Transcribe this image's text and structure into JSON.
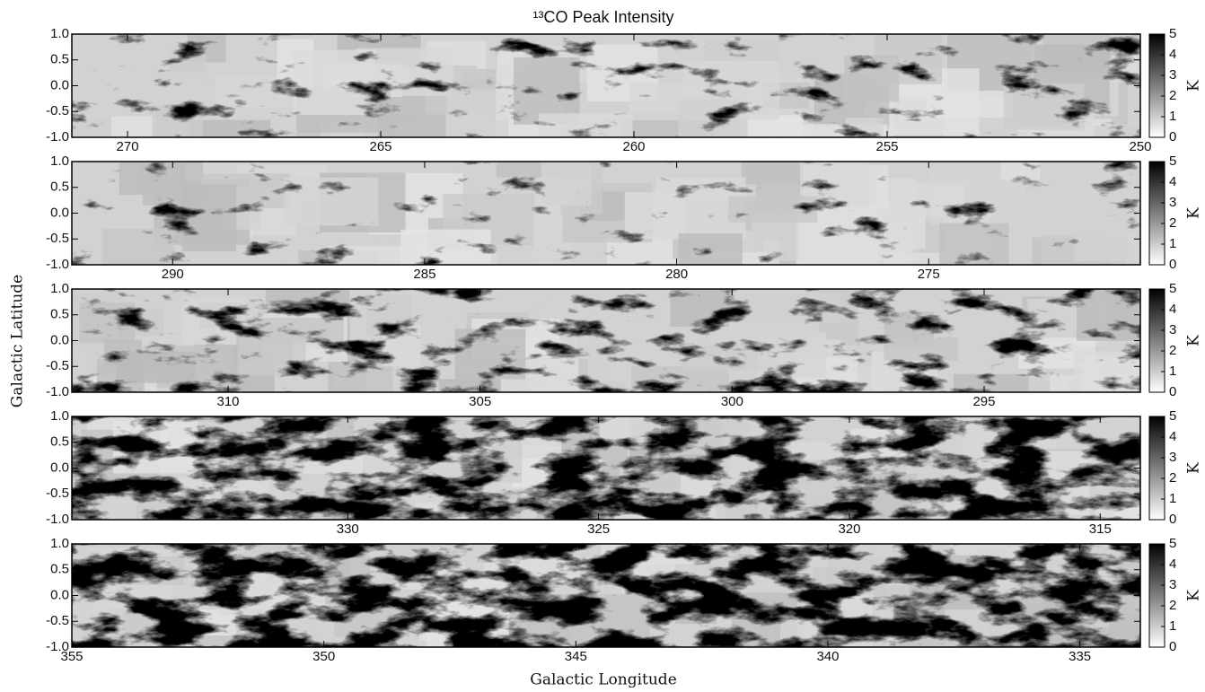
{
  "figure": {
    "title": "¹³CO Peak Intensity",
    "xlabel": "Galactic Longitude",
    "ylabel": "Galactic Latitude"
  },
  "chart_data": [
    {
      "type": "image",
      "xlim": [
        271.1,
        250
      ],
      "ylim": [
        -1,
        1
      ],
      "xticks": [
        270,
        265,
        260,
        255,
        250
      ],
      "yticks": [
        {
          "value": -1,
          "label": "-1.0"
        },
        {
          "value": -0.5,
          "label": "-0.5"
        },
        {
          "value": 0,
          "label": "0.0"
        },
        {
          "value": 0.5,
          "label": "0.5"
        },
        {
          "value": 1,
          "label": "1.0"
        }
      ],
      "colorbar": {
        "label": "K",
        "lim": [
          0,
          5
        ],
        "ticks": [
          0,
          1,
          2,
          3,
          4,
          5
        ]
      }
    },
    {
      "type": "image",
      "xlim": [
        292,
        270.8
      ],
      "ylim": [
        -1,
        1
      ],
      "xticks": [
        290,
        285,
        280,
        275
      ],
      "yticks": [
        {
          "value": -1,
          "label": "-1.0"
        },
        {
          "value": -0.5,
          "label": "-0.5"
        },
        {
          "value": 0,
          "label": "0.0"
        },
        {
          "value": 0.5,
          "label": "0.5"
        },
        {
          "value": 1,
          "label": "1.0"
        }
      ],
      "colorbar": {
        "label": "K",
        "lim": [
          0,
          5
        ],
        "ticks": [
          0,
          1,
          2,
          3,
          4,
          5
        ]
      }
    },
    {
      "type": "image",
      "xlim": [
        313.1,
        291.9
      ],
      "ylim": [
        -1,
        1
      ],
      "xticks": [
        310,
        305,
        300,
        295
      ],
      "yticks": [
        {
          "value": -1,
          "label": "-1.0"
        },
        {
          "value": -0.5,
          "label": "-0.5"
        },
        {
          "value": 0,
          "label": "0.0"
        },
        {
          "value": 0.5,
          "label": "0.5"
        },
        {
          "value": 1,
          "label": "1.0"
        }
      ],
      "colorbar": {
        "label": "K",
        "lim": [
          0,
          5
        ],
        "ticks": [
          0,
          1,
          2,
          3,
          4,
          5
        ]
      }
    },
    {
      "type": "image",
      "xlim": [
        335.5,
        314.2
      ],
      "ylim": [
        -1,
        1
      ],
      "xticks": [
        330,
        325,
        320,
        315
      ],
      "yticks": [
        {
          "value": -1,
          "label": "-1.0"
        },
        {
          "value": -0.5,
          "label": "-0.5"
        },
        {
          "value": 0,
          "label": "0.0"
        },
        {
          "value": 0.5,
          "label": "0.5"
        },
        {
          "value": 1,
          "label": "1.0"
        }
      ],
      "colorbar": {
        "label": "K",
        "lim": [
          0,
          5
        ],
        "ticks": [
          0,
          1,
          2,
          3,
          4,
          5
        ]
      }
    },
    {
      "type": "image",
      "xlim": [
        355,
        333.8
      ],
      "ylim": [
        -1,
        1
      ],
      "xticks": [
        355,
        350,
        345,
        340,
        335
      ],
      "yticks": [
        {
          "value": -1,
          "label": "-1.0"
        },
        {
          "value": -0.5,
          "label": "-0.5"
        },
        {
          "value": 0,
          "label": "0.0"
        },
        {
          "value": 0.5,
          "label": "0.5"
        },
        {
          "value": 1,
          "label": "1.0"
        }
      ],
      "colorbar": {
        "label": "K",
        "lim": [
          0,
          5
        ],
        "ticks": [
          0,
          1,
          2,
          3,
          4,
          5
        ]
      }
    }
  ]
}
